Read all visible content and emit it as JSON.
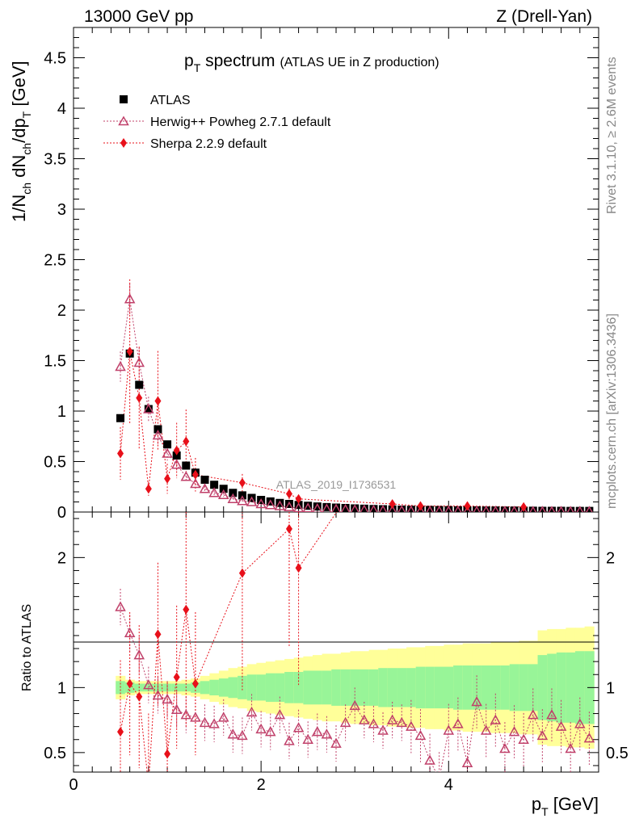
{
  "header": {
    "left": "13000 GeV pp",
    "right": "Z (Drell-Yan)"
  },
  "title": {
    "main_p": "p",
    "main_sub": "T",
    "main_rest": " spectrum",
    "paren": "(ATLAS UE in Z production)"
  },
  "ylabel_top": {
    "a": "1/N",
    "a_sub": "ch",
    "b": " dN",
    "b_sub": "ch",
    "c": "/dp",
    "c_sub": "T",
    "d": " [GeV]"
  },
  "ylabel_bottom": "Ratio to ATLAS",
  "xlabel": {
    "p": "p",
    "sub": "T",
    "rest": " [GeV]"
  },
  "watermark": "ATLAS_2019_I1736531",
  "side_text_top": "Rivet 3.1.10, ≥ 2.6M events",
  "side_text_bottom": "mcplots.cern.ch [arXiv:1306.3436]",
  "legend": {
    "atlas": "ATLAS",
    "herwig": "Herwig++ Powheg 2.7.1 default",
    "sherpa": "Sherpa 2.2.9 default"
  },
  "colors": {
    "atlas": "#000000",
    "herwig": "#c0406a",
    "sherpa": "#e8101a",
    "band_inner": "#98f598",
    "band_outer": "#ffff99"
  },
  "chart_data": [
    {
      "type": "scatter",
      "panel": "main",
      "xlim": [
        0,
        5.6
      ],
      "ylim": [
        0,
        4.8
      ],
      "xticks": [
        0,
        2,
        4
      ],
      "yticks": [
        0,
        0.5,
        1,
        1.5,
        2,
        2.5,
        3,
        3.5,
        4,
        4.5
      ],
      "ytick_labels": [
        "0",
        "0.5",
        "1",
        "1.5",
        "2",
        "2.5",
        "3",
        "3.5",
        "4",
        "4.5"
      ],
      "series": [
        {
          "name": "ATLAS",
          "x": [
            0.5,
            0.6,
            0.7,
            0.8,
            0.9,
            1.0,
            1.1,
            1.2,
            1.3,
            1.4,
            1.5,
            1.6,
            1.7,
            1.8,
            1.9,
            2.0,
            2.1,
            2.2,
            2.3,
            2.4,
            2.5,
            2.6,
            2.7,
            2.8,
            2.9,
            3.0,
            3.1,
            3.2,
            3.3,
            3.4,
            3.5,
            3.6,
            3.7,
            3.8,
            3.9,
            4.0,
            4.1,
            4.2,
            4.3,
            4.4,
            4.5,
            4.6,
            4.7,
            4.8,
            4.9,
            5.0,
            5.1,
            5.2,
            5.3,
            5.4,
            5.5
          ],
          "y": [
            0.93,
            1.57,
            1.26,
            1.02,
            0.82,
            0.67,
            0.56,
            0.46,
            0.39,
            0.32,
            0.27,
            0.23,
            0.19,
            0.165,
            0.14,
            0.12,
            0.105,
            0.09,
            0.08,
            0.07,
            0.062,
            0.055,
            0.049,
            0.044,
            0.04,
            0.036,
            0.033,
            0.03,
            0.028,
            0.026,
            0.024,
            0.022,
            0.021,
            0.02,
            0.019,
            0.018,
            0.017,
            0.016,
            0.016,
            0.015,
            0.015,
            0.014,
            0.014,
            0.013,
            0.013,
            0.012,
            0.012,
            0.012,
            0.011,
            0.011,
            0.011
          ]
        },
        {
          "name": "Herwig++ Powheg 2.7.1 default",
          "x": [
            0.5,
            0.6,
            0.7,
            0.8,
            0.9,
            1.0,
            1.1,
            1.2,
            1.3,
            1.4,
            1.5,
            1.6,
            1.7,
            1.8,
            1.9,
            2.0,
            2.1,
            2.2,
            2.3,
            2.4,
            2.5,
            2.6,
            2.7,
            2.8,
            2.9,
            3.0,
            3.1,
            3.2,
            3.3,
            3.4,
            3.5,
            3.6,
            3.7,
            3.8,
            3.9,
            4.0,
            4.1,
            4.2,
            4.3,
            4.4,
            4.5,
            4.6,
            4.7,
            4.8,
            4.9,
            5.0,
            5.1,
            5.2,
            5.3,
            5.4,
            5.5
          ],
          "y": [
            1.44,
            2.11,
            1.48,
            1.02,
            0.76,
            0.58,
            0.47,
            0.35,
            0.28,
            0.23,
            0.19,
            0.17,
            0.13,
            0.11,
            0.1,
            0.08,
            0.07,
            0.06,
            0.05,
            0.04,
            0.038,
            0.033,
            0.03,
            0.028,
            0.025,
            0.022,
            0.02,
            0.018,
            0.016,
            0.015,
            0.013,
            0.011,
            0.01,
            0.009,
            0.009,
            0.009,
            0.009,
            0.008,
            0.008,
            0.008,
            0.008,
            0.007,
            0.007,
            0.007,
            0.006,
            0.006,
            0.006,
            0.006,
            0.006,
            0.006,
            0.006
          ]
        },
        {
          "name": "Sherpa 2.2.9 default",
          "x": [
            0.5,
            0.6,
            0.7,
            0.8,
            0.9,
            1.0,
            1.1,
            1.2,
            1.3,
            1.8,
            2.3,
            2.4,
            3.4,
            3.7,
            4.2,
            4.8
          ],
          "y": [
            0.58,
            1.59,
            1.13,
            0.23,
            1.1,
            0.33,
            0.61,
            0.7,
            0.37,
            0.29,
            0.18,
            0.13,
            0.08,
            0.06,
            0.06,
            0.05
          ]
        }
      ]
    },
    {
      "type": "scatter",
      "panel": "ratio",
      "xlim": [
        0,
        5.6
      ],
      "ylim": [
        0.35,
        2.35
      ],
      "xticks": [
        0,
        2,
        4
      ],
      "xtick_labels": [
        "0",
        "2",
        "4"
      ],
      "yticks": [
        0.5,
        1,
        2
      ],
      "ytick_labels": [
        "0.5",
        "1",
        "2"
      ],
      "reference_line": 1,
      "band_x_edges": [
        0.45,
        0.55,
        0.65,
        0.75,
        0.85,
        0.95,
        1.05,
        1.15,
        1.25,
        1.35,
        1.45,
        1.55,
        1.65,
        1.75,
        1.85,
        1.95,
        2.05,
        2.15,
        2.25,
        2.35,
        2.45,
        2.55,
        2.65,
        2.75,
        2.85,
        2.95,
        3.05,
        3.15,
        3.25,
        3.35,
        3.45,
        3.55,
        3.65,
        3.75,
        3.85,
        3.95,
        4.05,
        4.15,
        4.25,
        4.35,
        4.45,
        4.55,
        4.65,
        4.75,
        4.85,
        4.95,
        5.05,
        5.15,
        5.25,
        5.35,
        5.45,
        5.55
      ],
      "band_inner_halfwidth": [
        0.05,
        0.04,
        0.03,
        0.03,
        0.03,
        0.03,
        0.03,
        0.03,
        0.04,
        0.05,
        0.06,
        0.07,
        0.08,
        0.09,
        0.1,
        0.1,
        0.11,
        0.11,
        0.12,
        0.12,
        0.13,
        0.13,
        0.13,
        0.14,
        0.14,
        0.14,
        0.14,
        0.14,
        0.15,
        0.15,
        0.15,
        0.15,
        0.16,
        0.16,
        0.16,
        0.16,
        0.17,
        0.17,
        0.17,
        0.17,
        0.17,
        0.17,
        0.18,
        0.18,
        0.18,
        0.25,
        0.26,
        0.27,
        0.27,
        0.28,
        0.28
      ],
      "band_outer_halfwidth": [
        0.09,
        0.06,
        0.05,
        0.05,
        0.05,
        0.05,
        0.05,
        0.06,
        0.07,
        0.09,
        0.11,
        0.13,
        0.15,
        0.16,
        0.18,
        0.19,
        0.2,
        0.21,
        0.22,
        0.23,
        0.24,
        0.25,
        0.26,
        0.26,
        0.27,
        0.28,
        0.28,
        0.29,
        0.29,
        0.3,
        0.3,
        0.31,
        0.31,
        0.32,
        0.32,
        0.33,
        0.33,
        0.34,
        0.34,
        0.34,
        0.35,
        0.35,
        0.35,
        0.36,
        0.36,
        0.44,
        0.45,
        0.45,
        0.46,
        0.46,
        0.47
      ],
      "series": [
        {
          "name": "Herwig++ Powheg 2.7.1 default",
          "x": [
            0.5,
            0.6,
            0.7,
            0.8,
            0.9,
            1.0,
            1.1,
            1.2,
            1.3,
            1.4,
            1.5,
            1.6,
            1.7,
            1.8,
            1.9,
            2.0,
            2.1,
            2.2,
            2.3,
            2.4,
            2.5,
            2.6,
            2.7,
            2.8,
            2.9,
            3.0,
            3.1,
            3.2,
            3.3,
            3.4,
            3.5,
            3.6,
            3.7,
            3.8,
            3.9,
            4.0,
            4.1,
            4.2,
            4.3,
            4.4,
            4.5,
            4.6,
            4.7,
            4.8,
            4.9,
            5.0,
            5.1,
            5.2,
            5.3,
            5.4,
            5.5
          ],
          "y": [
            1.62,
            1.42,
            1.25,
            1.02,
            0.94,
            0.91,
            0.83,
            0.79,
            0.77,
            0.73,
            0.72,
            0.77,
            0.64,
            0.63,
            0.81,
            0.68,
            0.66,
            0.79,
            0.59,
            0.69,
            0.6,
            0.66,
            0.64,
            0.57,
            0.73,
            0.86,
            0.75,
            0.72,
            0.67,
            0.75,
            0.73,
            0.7,
            0.63,
            0.44,
            0.3,
            0.67,
            0.72,
            0.42,
            0.89,
            0.67,
            0.75,
            0.53,
            0.66,
            0.6,
            0.79,
            0.63,
            0.79,
            0.7,
            0.53,
            0.72,
            0.61
          ]
        },
        {
          "name": "Sherpa 2.2.9 default",
          "x": [
            0.5,
            0.6,
            0.7,
            0.8,
            0.9,
            1.0,
            1.1,
            1.2,
            1.3,
            1.8,
            2.3,
            2.4
          ],
          "y": [
            0.66,
            1.03,
            0.93,
            0.25,
            1.41,
            0.49,
            1.08,
            1.6,
            1.03,
            1.88,
            2.22,
            1.92
          ]
        }
      ]
    }
  ]
}
